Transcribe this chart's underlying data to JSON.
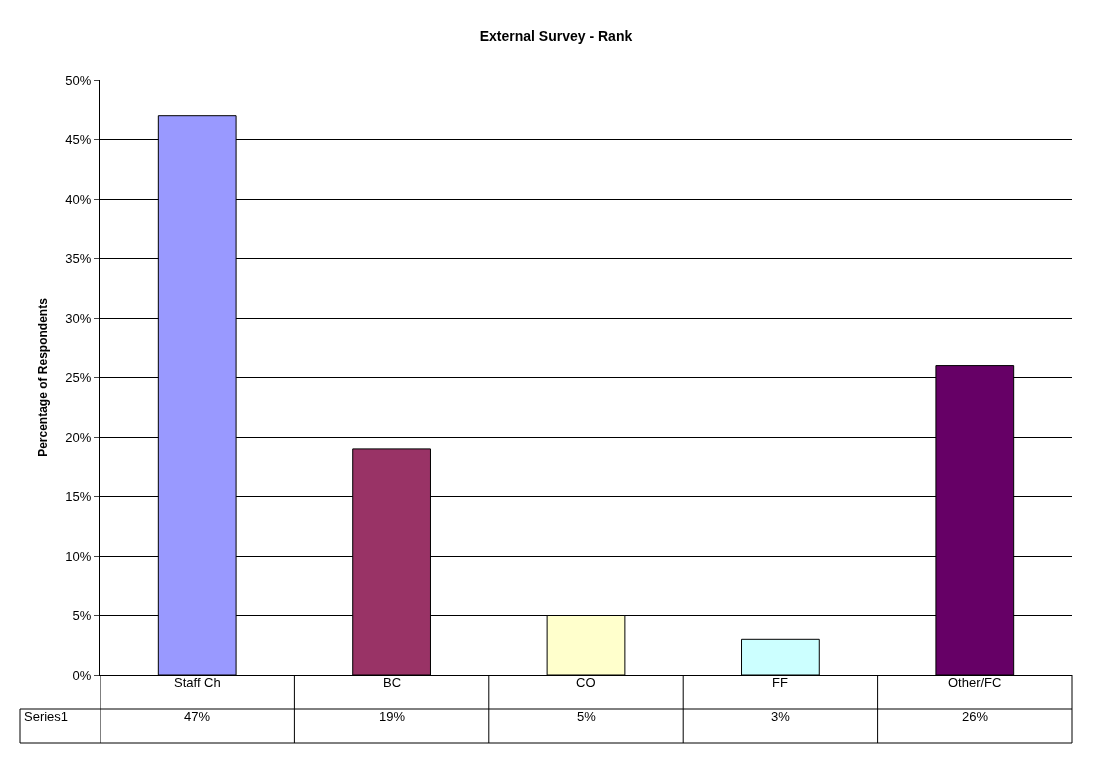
{
  "chart_data": {
    "type": "bar",
    "title": "External Survey - Rank",
    "ylabel": "Percentage of Respondents",
    "categories": [
      "Staff Ch",
      "BC",
      "CO",
      "FF",
      "Other/FC"
    ],
    "series": [
      {
        "name": "Series1",
        "values": [
          47,
          19,
          5,
          3,
          26
        ],
        "colors": [
          "#9999ff",
          "#993366",
          "#ffffcc",
          "#ccffff",
          "#660066"
        ],
        "value_labels": [
          "47%",
          "19%",
          "5%",
          "3%",
          "26%"
        ]
      }
    ],
    "ylim": [
      0,
      50
    ],
    "yticks": [
      {
        "value": 0,
        "label": "0%"
      },
      {
        "value": 5,
        "label": "5%"
      },
      {
        "value": 10,
        "label": "10%"
      },
      {
        "value": 15,
        "label": "15%"
      },
      {
        "value": 20,
        "label": "20%"
      },
      {
        "value": 25,
        "label": "25%"
      },
      {
        "value": 30,
        "label": "30%"
      },
      {
        "value": 35,
        "label": "35%"
      },
      {
        "value": 40,
        "label": "40%"
      },
      {
        "value": 45,
        "label": "45%"
      },
      {
        "value": 50,
        "label": "50%"
      }
    ],
    "grid": "y",
    "legend": false
  }
}
